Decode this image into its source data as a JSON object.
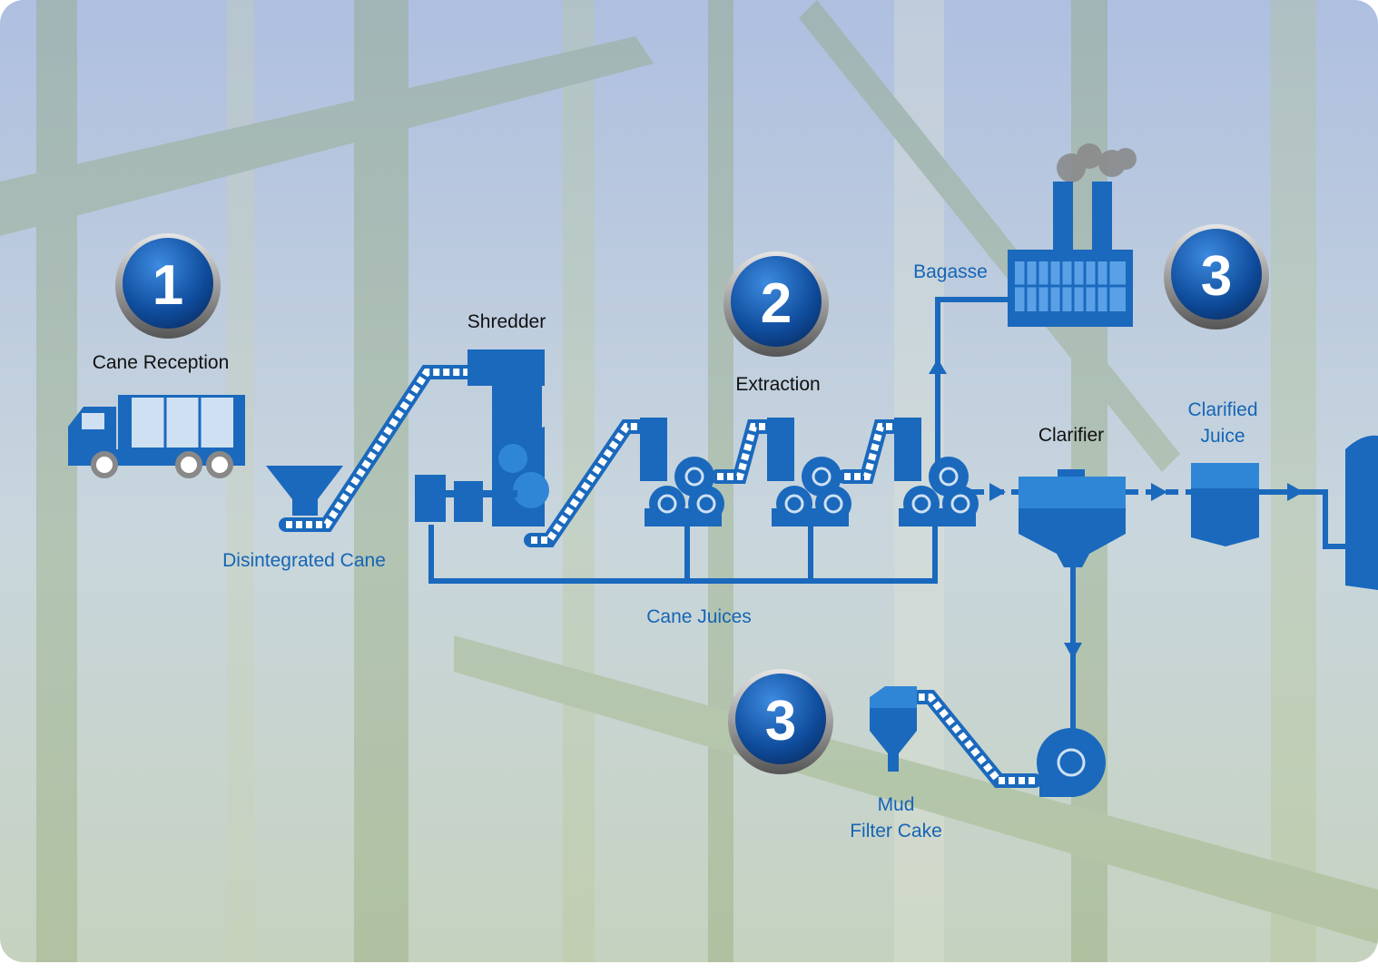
{
  "badges": [
    "1",
    "2",
    "3",
    "3"
  ],
  "labels": {
    "cane_reception": "Cane Reception",
    "shredder": "Shredder",
    "disintegrated_cane": "Disintegrated Cane",
    "extraction": "Extraction",
    "bagasse": "Bagasse",
    "clarifier": "Clarifier",
    "clarified_juice": [
      "Clarified",
      "Juice"
    ],
    "cane_juices": "Cane Juices",
    "mud_filter_cake": [
      "Mud",
      "Filter Cake"
    ]
  }
}
